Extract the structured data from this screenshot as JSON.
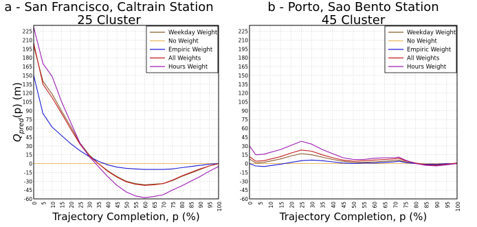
{
  "chart_data": [
    {
      "type": "line",
      "title_line1": "a - San Francisco, Caltrain Station",
      "title_line2": "25 Cluster",
      "xlabel": "Trajectory Completion, p (%)",
      "ylabel_main": "Q",
      "ylabel_sub": "pred",
      "ylabel_tail": "(p)  (m)",
      "xlim": [
        0,
        100
      ],
      "ylim": [
        -60,
        235
      ],
      "x_ticks": [
        0,
        5,
        10,
        15,
        20,
        25,
        30,
        35,
        40,
        45,
        50,
        55,
        60,
        65,
        70,
        75,
        80,
        85,
        90,
        95,
        100
      ],
      "y_ticks": [
        -60,
        -45,
        -30,
        -15,
        0,
        15,
        30,
        45,
        60,
        75,
        90,
        105,
        120,
        135,
        150,
        165,
        180,
        195,
        210,
        225
      ],
      "grid": true,
      "legend_position": "top-right",
      "x": [
        0,
        5,
        10,
        15,
        20,
        25,
        30,
        35,
        40,
        45,
        50,
        55,
        60,
        65,
        70,
        75,
        80,
        85,
        90,
        95,
        100
      ],
      "series": [
        {
          "name": "Weekday Weight",
          "color": "#8b5a2b",
          "values": [
            200,
            140,
            118,
            90,
            63,
            35,
            15,
            0,
            -12,
            -22,
            -30,
            -34,
            -36,
            -35,
            -34,
            -29,
            -22,
            -16,
            -10,
            -4,
            0
          ]
        },
        {
          "name": "No Weight",
          "color": "#e8b864",
          "values": [
            0,
            0,
            0,
            0,
            0,
            0,
            0,
            0,
            0,
            0,
            0,
            0,
            0,
            0,
            0,
            0,
            0,
            0,
            0,
            0,
            0
          ]
        },
        {
          "name": "Empiric Weight",
          "color": "#1a1ad4",
          "values": [
            150,
            85,
            62,
            48,
            34,
            22,
            12,
            4,
            -2,
            -6,
            -8,
            -9,
            -10,
            -10,
            -10,
            -9,
            -7,
            -5,
            -3,
            -1,
            0
          ]
        },
        {
          "name": "All Weights",
          "color": "#c21a1a",
          "values": [
            205,
            135,
            112,
            86,
            59,
            33,
            13,
            0,
            -13,
            -23,
            -31,
            -35,
            -37,
            -36,
            -34,
            -28,
            -21,
            -15,
            -9,
            -4,
            0
          ]
        },
        {
          "name": "Hours Weight",
          "color": "#9b1ab2",
          "values": [
            232,
            170,
            148,
            106,
            70,
            35,
            12,
            -5,
            -22,
            -37,
            -48,
            -55,
            -58,
            -56,
            -53,
            -45,
            -38,
            -30,
            -22,
            -13,
            -5
          ]
        }
      ]
    },
    {
      "type": "line",
      "title_line1": "b - Porto, Sao Bento Station",
      "title_line2": "45 Cluster",
      "xlabel": "Trajectory Completion, p (%)",
      "ylabel_main": "",
      "ylabel_sub": "",
      "ylabel_tail": "",
      "xlim": [
        0,
        100
      ],
      "ylim": [
        -60,
        235
      ],
      "x_ticks": [
        0,
        5,
        10,
        15,
        20,
        25,
        30,
        35,
        40,
        45,
        50,
        55,
        60,
        65,
        70,
        75,
        80,
        85,
        90,
        95,
        100
      ],
      "y_ticks": [
        -60,
        -45,
        -30,
        -15,
        0,
        15,
        30,
        45,
        60,
        75,
        90,
        105,
        120,
        135,
        150,
        165,
        180,
        195,
        210,
        225
      ],
      "grid": true,
      "legend_position": "top-right",
      "x": [
        0,
        3,
        7,
        15,
        20,
        25,
        30,
        35,
        40,
        45,
        50,
        55,
        60,
        65,
        70,
        72,
        75,
        80,
        85,
        90,
        95,
        100
      ],
      "series": [
        {
          "name": "Weekday Weight",
          "color": "#8b5a2b",
          "values": [
            8,
            1,
            2,
            8,
            13,
            17,
            15,
            11,
            7,
            4,
            2,
            2,
            3,
            4,
            5,
            6,
            3,
            0,
            -2,
            -2,
            -1,
            0
          ]
        },
        {
          "name": "No Weight",
          "color": "#e8b864",
          "values": [
            0,
            0,
            0,
            0,
            0,
            0,
            0,
            0,
            0,
            0,
            0,
            0,
            0,
            0,
            0,
            0,
            0,
            0,
            0,
            0,
            0,
            0
          ]
        },
        {
          "name": "Empiric Weight",
          "color": "#1a1ad4",
          "values": [
            0,
            -4,
            -5,
            -1,
            2,
            5,
            6,
            5,
            3,
            1,
            0,
            1,
            1,
            2,
            3,
            4,
            2,
            0,
            -1,
            -1,
            0,
            0
          ]
        },
        {
          "name": "All Weights",
          "color": "#c21a1a",
          "values": [
            12,
            4,
            5,
            12,
            18,
            23,
            21,
            15,
            10,
            6,
            4,
            5,
            6,
            7,
            8,
            9,
            5,
            1,
            -2,
            -3,
            -1,
            1
          ]
        },
        {
          "name": "Hours Weight",
          "color": "#9b1ab2",
          "values": [
            30,
            15,
            16,
            24,
            31,
            38,
            33,
            24,
            17,
            10,
            7,
            7,
            9,
            10,
            10,
            11,
            6,
            0,
            -3,
            -4,
            -2,
            0
          ]
        }
      ]
    }
  ]
}
